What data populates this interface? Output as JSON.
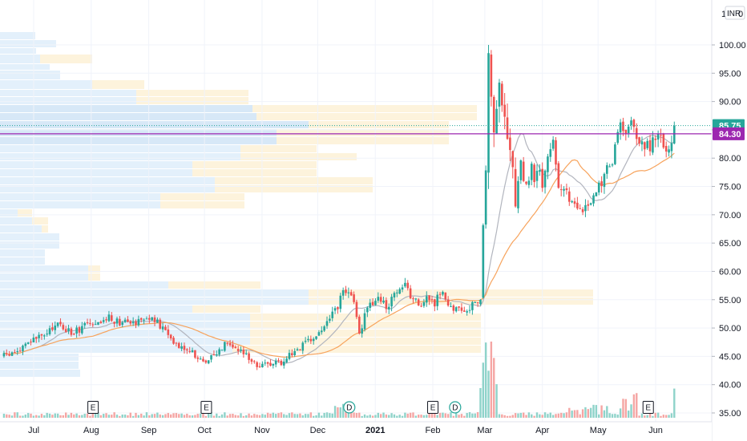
{
  "header": {
    "scale_button": "1",
    "currency": "INR",
    "settings_glyph": "0"
  },
  "chart_data": {
    "type": "candlestick",
    "yticks": [
      35.0,
      40.0,
      45.0,
      50.0,
      55.0,
      60.0,
      65.0,
      70.0,
      75.0,
      80.0,
      85.0,
      90.0,
      95.0,
      100.0
    ],
    "ylim": [
      33.5,
      103.5
    ],
    "x_labels": [
      {
        "label": "Jul",
        "day": 0
      },
      {
        "label": "Aug",
        "day": 31
      },
      {
        "label": "Sep",
        "day": 62
      },
      {
        "label": "Oct",
        "day": 92
      },
      {
        "label": "Nov",
        "day": 123
      },
      {
        "label": "Dec",
        "day": 153
      },
      {
        "label": "2021",
        "day": 184,
        "bold": true
      },
      {
        "label": "Feb",
        "day": 215
      },
      {
        "label": "Mar",
        "day": 243
      },
      {
        "label": "Apr",
        "day": 274
      },
      {
        "label": "May",
        "day": 304
      },
      {
        "label": "Jun",
        "day": 335
      }
    ],
    "xlim_days": [
      -16,
      349
    ],
    "price_anchors": [
      [
        -16,
        45
      ],
      [
        -8,
        46
      ],
      [
        0,
        48
      ],
      [
        8,
        49
      ],
      [
        12,
        51
      ],
      [
        16,
        50
      ],
      [
        22,
        49
      ],
      [
        28,
        51
      ],
      [
        33,
        50
      ],
      [
        40,
        52
      ],
      [
        46,
        51
      ],
      [
        50,
        52
      ],
      [
        54,
        51
      ],
      [
        60,
        52
      ],
      [
        66,
        51
      ],
      [
        72,
        49
      ],
      [
        78,
        47
      ],
      [
        85,
        46
      ],
      [
        90,
        44
      ],
      [
        96,
        45
      ],
      [
        100,
        46
      ],
      [
        104,
        48
      ],
      [
        110,
        46
      ],
      [
        116,
        45
      ],
      [
        122,
        43
      ],
      [
        128,
        44
      ],
      [
        134,
        44
      ],
      [
        140,
        46
      ],
      [
        146,
        47
      ],
      [
        150,
        48
      ],
      [
        156,
        50
      ],
      [
        160,
        52
      ],
      [
        164,
        54
      ],
      [
        168,
        57
      ],
      [
        172,
        55
      ],
      [
        174,
        52
      ],
      [
        176,
        48
      ],
      [
        178,
        53
      ],
      [
        184,
        55
      ],
      [
        190,
        54
      ],
      [
        196,
        56
      ],
      [
        200,
        58
      ],
      [
        204,
        55
      ],
      [
        208,
        54
      ],
      [
        212,
        55
      ],
      [
        216,
        54
      ],
      [
        220,
        57
      ],
      [
        224,
        54
      ],
      [
        230,
        53
      ],
      [
        236,
        54
      ],
      [
        240,
        54
      ],
      [
        241,
        57
      ],
      [
        242,
        66
      ],
      [
        243,
        73
      ],
      [
        244,
        84
      ],
      [
        245,
        96
      ],
      [
        246,
        91
      ],
      [
        248,
        86
      ],
      [
        250,
        93
      ],
      [
        252,
        88
      ],
      [
        254,
        85
      ],
      [
        256,
        85
      ],
      [
        258,
        78
      ],
      [
        260,
        72
      ],
      [
        262,
        80
      ],
      [
        264,
        76
      ],
      [
        266,
        74
      ],
      [
        268,
        80
      ],
      [
        270,
        76
      ],
      [
        272,
        79
      ],
      [
        274,
        74
      ],
      [
        276,
        78
      ],
      [
        278,
        82
      ],
      [
        280,
        84
      ],
      [
        282,
        76
      ],
      [
        286,
        74
      ],
      [
        290,
        72
      ],
      [
        294,
        71
      ],
      [
        298,
        72
      ],
      [
        302,
        74
      ],
      [
        306,
        75
      ],
      [
        308,
        79
      ],
      [
        312,
        80
      ],
      [
        314,
        84
      ],
      [
        316,
        86
      ],
      [
        318,
        84
      ],
      [
        320,
        84
      ],
      [
        322,
        87
      ],
      [
        324,
        84
      ],
      [
        328,
        83
      ],
      [
        332,
        82
      ],
      [
        336,
        84
      ],
      [
        340,
        82
      ],
      [
        344,
        83
      ],
      [
        346,
        85.75
      ]
    ],
    "sma_fast_color": "#b2b5be",
    "sma_slow_color": "#f7a35c",
    "up_color": "#26a69a",
    "down_color": "#ef5350",
    "last_price": {
      "value": 85.75,
      "label": "85.75",
      "color": "#26a69a"
    },
    "reference_line": {
      "value": 84.3,
      "label": "84.30",
      "color": "#9c27b0"
    },
    "event_badges": [
      {
        "label": "E",
        "day": 32
      },
      {
        "label": "E",
        "day": 93
      },
      {
        "label": "D",
        "day": 170,
        "round": true
      },
      {
        "label": "E",
        "day": 215
      },
      {
        "label": "D",
        "day": 227,
        "round": true
      },
      {
        "label": "E",
        "day": 331
      }
    ]
  }
}
